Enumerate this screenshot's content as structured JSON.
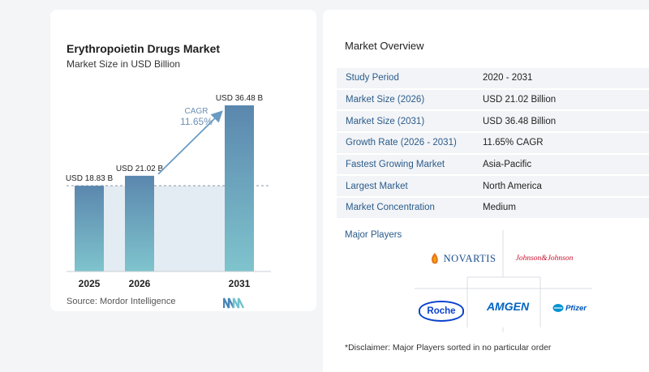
{
  "chart_card": {
    "title": "Erythropoietin Drugs Market",
    "subtitle": "Market Size in USD Billion",
    "source": "Source:  Mordor Intelligence"
  },
  "chart_data": {
    "type": "bar",
    "title": "Erythropoietin Drugs Market",
    "subtitle": "Market Size in USD Billion",
    "categories": [
      "2025",
      "2026",
      "2031"
    ],
    "values": [
      18.83,
      21.02,
      36.48
    ],
    "data_labels": [
      "USD 18.83 B",
      "USD 21.02 B",
      "USD 36.48 B"
    ],
    "cagr_label": "CAGR",
    "cagr_value": "11.65%",
    "ylim": [
      0,
      36.48
    ],
    "grid": false,
    "bar_color_top": "#5b87ae",
    "bar_color_bottom": "#7fc4cd",
    "arrow_color": "#6a9bc3"
  },
  "overview": {
    "title": "Market Overview",
    "rows": [
      {
        "label": "Study Period",
        "value": "2020 - 2031"
      },
      {
        "label": "Market Size (2026)",
        "value": "USD 21.02 Billion"
      },
      {
        "label": "Market Size (2031)",
        "value": "USD 36.48 Billion"
      },
      {
        "label": "Growth Rate (2026 - 2031)",
        "value": "11.65% CAGR"
      },
      {
        "label": "Fastest Growing Market",
        "value": "Asia-Pacific"
      },
      {
        "label": "Largest Market",
        "value": "North America"
      },
      {
        "label": "Market Concentration",
        "value": "Medium"
      }
    ]
  },
  "players": {
    "title": "Major Players",
    "logos": {
      "novartis": "NOVARTIS",
      "jj": "Johnson&Johnson",
      "roche": "Roche",
      "amgen": "AMGEN",
      "pfizer": "Pfizer"
    }
  },
  "disclaimer": "*Disclaimer: Major Players sorted in no particular order"
}
